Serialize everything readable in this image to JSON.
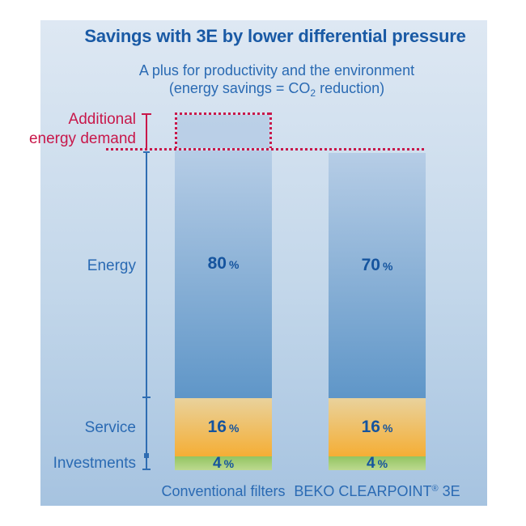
{
  "title": "Savings with 3E by lower differential pressure",
  "subtitle": {
    "line1": "A plus for productivity and the environment",
    "line2_pre": "(energy savings = CO",
    "line2_sub": "2",
    "line2_post": " reduction)"
  },
  "annotation": {
    "line1": "Additional",
    "line2": "energy demand"
  },
  "row_labels": {
    "energy": "Energy",
    "service": "Service",
    "investments": "Investments"
  },
  "percent_sign": "%",
  "bars": {
    "conventional": {
      "label": "Conventional filters",
      "energy_value": "80",
      "service_value": "16",
      "investments_value": "4"
    },
    "clearpoint": {
      "label_pre": "BEKO CLEARPOINT",
      "label_reg": "®",
      "label_post": " 3E",
      "energy_value": "70",
      "service_value": "16",
      "investments_value": "4"
    }
  },
  "colors": {
    "title_blue": "#1a5aa5",
    "text_blue": "#2a6ab3",
    "value_blue": "#15549e",
    "accent_red": "#c8174a",
    "energy_top": "#b6cde6",
    "energy_bottom": "#5f96c8",
    "service_top": "#e9d29c",
    "service_bottom": "#f5ae35",
    "investments_top": "#93c462",
    "investments_bottom": "#bcd98f",
    "panel_top": "#dee8f3",
    "panel_bottom": "#a6c3e0"
  },
  "chart_data": {
    "type": "bar",
    "stacked": true,
    "title": "Savings with 3E by lower differential pressure",
    "subtitle": "A plus for productivity and the environment (energy savings = CO2 reduction)",
    "categories": [
      "Conventional filters",
      "BEKO CLEARPOINT® 3E"
    ],
    "series": [
      {
        "name": "Energy",
        "values": [
          80,
          70
        ],
        "unit": "%"
      },
      {
        "name": "Service",
        "values": [
          16,
          16
        ],
        "unit": "%"
      },
      {
        "name": "Investments",
        "values": [
          4,
          4
        ],
        "unit": "%"
      }
    ],
    "annotations": [
      {
        "text": "Additional energy demand",
        "target": "Conventional filters",
        "position": "above-bar",
        "style": "red-dotted-box"
      }
    ],
    "ylim": [
      0,
      100
    ],
    "grid": false,
    "legend_position": "row-labels-left"
  }
}
